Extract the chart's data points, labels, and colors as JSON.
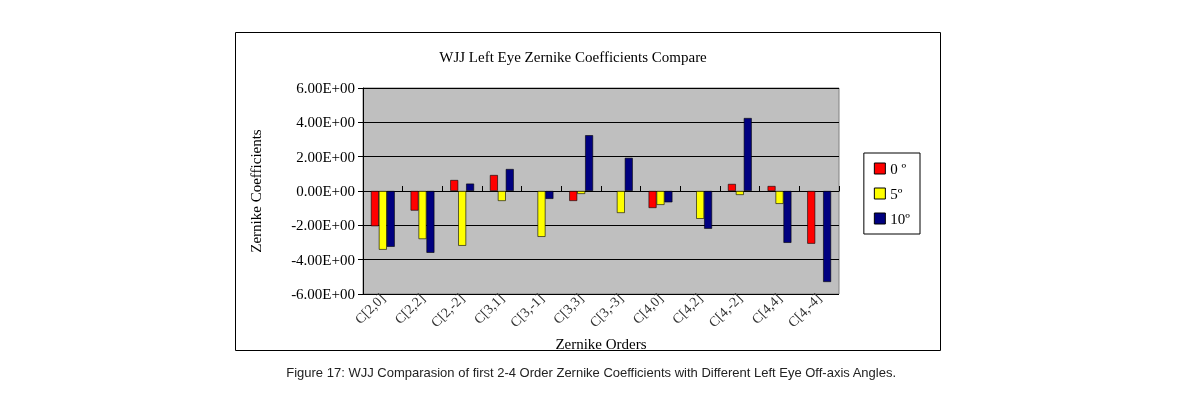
{
  "chart_data": {
    "type": "bar",
    "title": "WJJ Left Eye Zernike Coefficients Compare",
    "xlabel": "Zernike Orders",
    "ylabel": "Zernike Coefficients",
    "categories": [
      "C[2,0]",
      "C[2,2]",
      "C[2,-2]",
      "C[3,1]",
      "C[3,-1]",
      "C[3,3]",
      "C[3,-3]",
      "C[4,0]",
      "C[4,2]",
      "C[4,-2]",
      "C[4,4]",
      "C[4,-4]"
    ],
    "series": [
      {
        "name": "0 º",
        "color": "#ff0000",
        "values": [
          -2.05,
          -1.14,
          0.64,
          0.93,
          null,
          -0.58,
          null,
          -0.99,
          null,
          0.41,
          0.29,
          -3.07
        ]
      },
      {
        "name": "5º",
        "color": "#ffff00",
        "values": [
          -3.42,
          -2.8,
          -3.19,
          -0.58,
          -2.67,
          -0.17,
          -1.28,
          -0.81,
          -1.62,
          -0.23,
          -0.75,
          null
        ]
      },
      {
        "name": "10º",
        "color": "#000080",
        "values": [
          -3.25,
          -3.6,
          0.43,
          1.28,
          -0.46,
          3.25,
          1.93,
          -0.66,
          -2.2,
          4.25,
          -3.02,
          -5.3
        ]
      }
    ],
    "ylim": [
      -6,
      6
    ],
    "yticks": [
      {
        "value": -6,
        "label": "-6.00E+00"
      },
      {
        "value": -4,
        "label": "-4.00E+00"
      },
      {
        "value": -2,
        "label": "-2.00E+00"
      },
      {
        "value": 0,
        "label": "0.00E+00"
      },
      {
        "value": 2,
        "label": "2.00E+00"
      },
      {
        "value": 4,
        "label": "4.00E+00"
      },
      {
        "value": 6,
        "label": "6.00E+00"
      }
    ],
    "grid": "y",
    "legend": "right",
    "annotations": [
      "Figure 17: WJJ Comparasion of first 2-4 Order Zernike Coefficients with Different Left Eye Off-axis Angles."
    ]
  }
}
